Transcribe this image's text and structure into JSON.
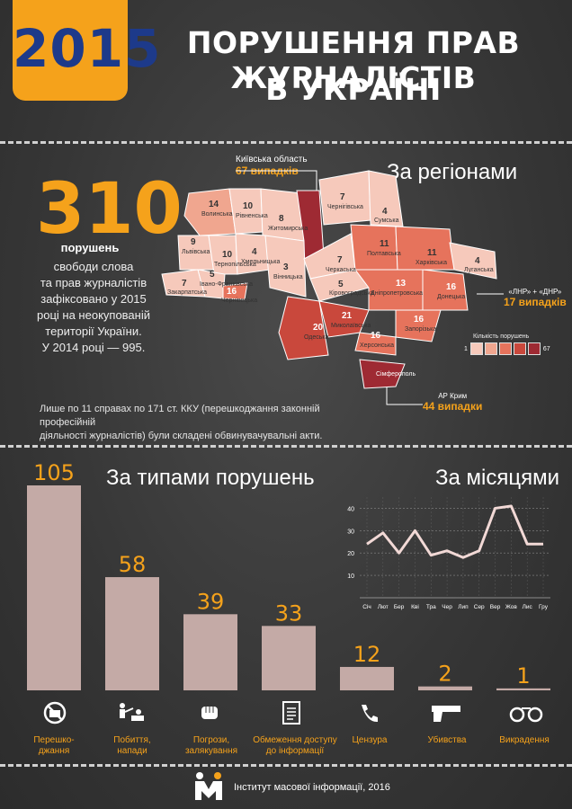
{
  "header": {
    "year": "2015",
    "title_line1": "ПОРУШЕННЯ ПРАВ ЖУРНАЛІСТІВ",
    "title_line2": "В УКРАЇНІ"
  },
  "summary": {
    "total": "310",
    "total_label": "порушень",
    "lines": [
      "свободи слова",
      "та прав журналістів",
      "зафіксовано у 2015",
      "році на неокупованій",
      "території України.",
      "У 2014 році — 995."
    ],
    "note_line1": "Лише по 11 справах по 171 ст. ККУ (перешкоджання законній професійній",
    "note_line2": "діяльності журналістів) були складені обвинувачувальні акти."
  },
  "regions": {
    "title": "За регіонами",
    "kyiv_label": "Київська область",
    "kyiv_value": "67 випадків",
    "lnr_label": "«ЛНР» + «ДНР»",
    "lnr_value": "17 випадків",
    "crimea_label": "АР Крим",
    "crimea_value": "44 випадки",
    "legend_title": "Кількість порушень",
    "legend_min": "1",
    "legend_max": "67",
    "legend_colors": [
      "#f6c9bb",
      "#f0a68f",
      "#e6735c",
      "#c9483c",
      "#9e2a33"
    ],
    "items": [
      {
        "name": "Волинська",
        "value": "14"
      },
      {
        "name": "Рівненська",
        "value": "10"
      },
      {
        "name": "Житомирська",
        "value": "8"
      },
      {
        "name": "Чернігівська",
        "value": "7"
      },
      {
        "name": "Сумська",
        "value": "4"
      },
      {
        "name": "Львівська",
        "value": "9"
      },
      {
        "name": "Тернопільська",
        "value": "10"
      },
      {
        "name": "Хмельницька",
        "value": "4"
      },
      {
        "name": "Вінницька",
        "value": "3"
      },
      {
        "name": "Черкаська",
        "value": "7"
      },
      {
        "name": "Полтавська",
        "value": "11"
      },
      {
        "name": "Харківська",
        "value": "11"
      },
      {
        "name": "Луганська",
        "value": "4"
      },
      {
        "name": "Закарпатська",
        "value": "7"
      },
      {
        "name": "Івано-Франківська",
        "value": "5"
      },
      {
        "name": "Чернівецька",
        "value": "16"
      },
      {
        "name": "Кіровоградська",
        "value": "5"
      },
      {
        "name": "Дніпропетровська",
        "value": "13"
      },
      {
        "name": "Донецька",
        "value": "16"
      },
      {
        "name": "Одеська",
        "value": "20"
      },
      {
        "name": "Миколаївська",
        "value": "21"
      },
      {
        "name": "Запорізька",
        "value": "16"
      },
      {
        "name": "Херсонська",
        "value": "16"
      },
      {
        "name": "Сімферополь",
        "value": ""
      }
    ]
  },
  "types": {
    "title": "За типами порушень",
    "items": [
      {
        "label1": "Перешко-",
        "label2": "джання",
        "icon": "no-camera-icon"
      },
      {
        "label1": "Побиття,",
        "label2": "напади",
        "icon": "assault-icon"
      },
      {
        "label1": "Погрози,",
        "label2": "залякування",
        "icon": "fist-icon"
      },
      {
        "label1": "Обмеження доступу",
        "label2": "до інформації",
        "icon": "document-icon"
      },
      {
        "label1": "Цензура",
        "label2": "",
        "icon": "phone-icon"
      },
      {
        "label1": "Убивства",
        "label2": "",
        "icon": "gun-icon"
      },
      {
        "label1": "Викрадення",
        "label2": "",
        "icon": "handcuffs-icon"
      }
    ]
  },
  "months": {
    "title": "За місяцями"
  },
  "footer": {
    "text": "Інститут масової  інформації, 2016"
  },
  "chart_data": [
    {
      "type": "bar",
      "title": "За типами порушень",
      "categories": [
        "Перешкоджання",
        "Побиття, напади",
        "Погрози, залякування",
        "Обмеження доступу до інформації",
        "Цензура",
        "Убивства",
        "Викрадення"
      ],
      "values": [
        105,
        58,
        39,
        33,
        12,
        2,
        1
      ],
      "bar_color": "#c4aaa6",
      "value_color": "#f5a21b"
    },
    {
      "type": "line",
      "title": "За місяцями",
      "categories": [
        "Січ",
        "Лют",
        "Бер",
        "Кві",
        "Тра",
        "Чер",
        "Лип",
        "Сер",
        "Вер",
        "Жов",
        "Лис",
        "Гру"
      ],
      "values": [
        24,
        29,
        20,
        30,
        19,
        21,
        18,
        21,
        40,
        41,
        24,
        24
      ],
      "yticks": [
        10,
        20,
        30,
        40
      ],
      "ylim": [
        0,
        45
      ],
      "grid": true,
      "line_color": "#f2d9d6"
    }
  ]
}
